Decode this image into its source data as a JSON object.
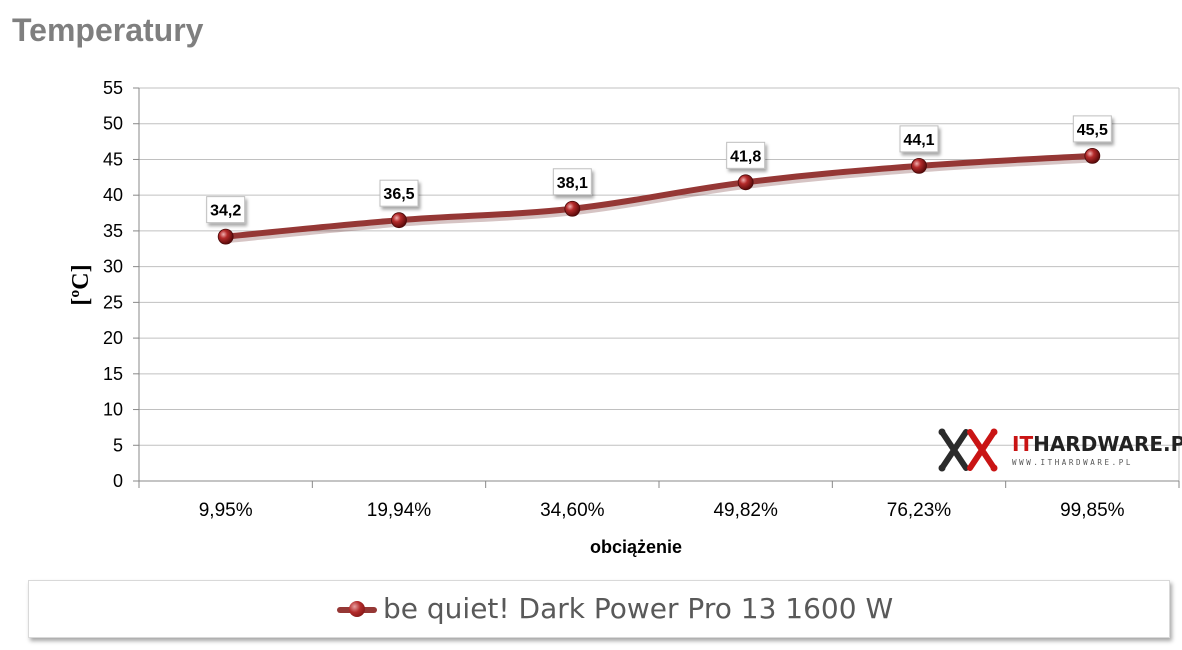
{
  "title": "Temperatury",
  "chart_data": {
    "type": "line",
    "categories": [
      "9,95%",
      "19,94%",
      "34,60%",
      "49,82%",
      "76,23%",
      "99,85%"
    ],
    "series": [
      {
        "name": "be quiet! Dark Power Pro 13 1600 W",
        "values": [
          34.2,
          36.5,
          38.1,
          41.8,
          44.1,
          45.5
        ],
        "labels": [
          "34,2",
          "36,5",
          "38,1",
          "41,8",
          "44,1",
          "45,5"
        ],
        "color": "#953735"
      }
    ],
    "title": "Temperatury",
    "xlabel": "obciążenie",
    "ylabel": "[ºC]",
    "ylim": [
      0,
      55
    ],
    "yticks": [
      0,
      5,
      10,
      15,
      20,
      25,
      30,
      35,
      40,
      45,
      50,
      55
    ],
    "grid": true,
    "legend_position": "bottom"
  },
  "watermark": {
    "brand_it": "IT",
    "brand_rest": "HARDWARE.PL",
    "url": "WWW.ITHARDWARE.PL"
  }
}
